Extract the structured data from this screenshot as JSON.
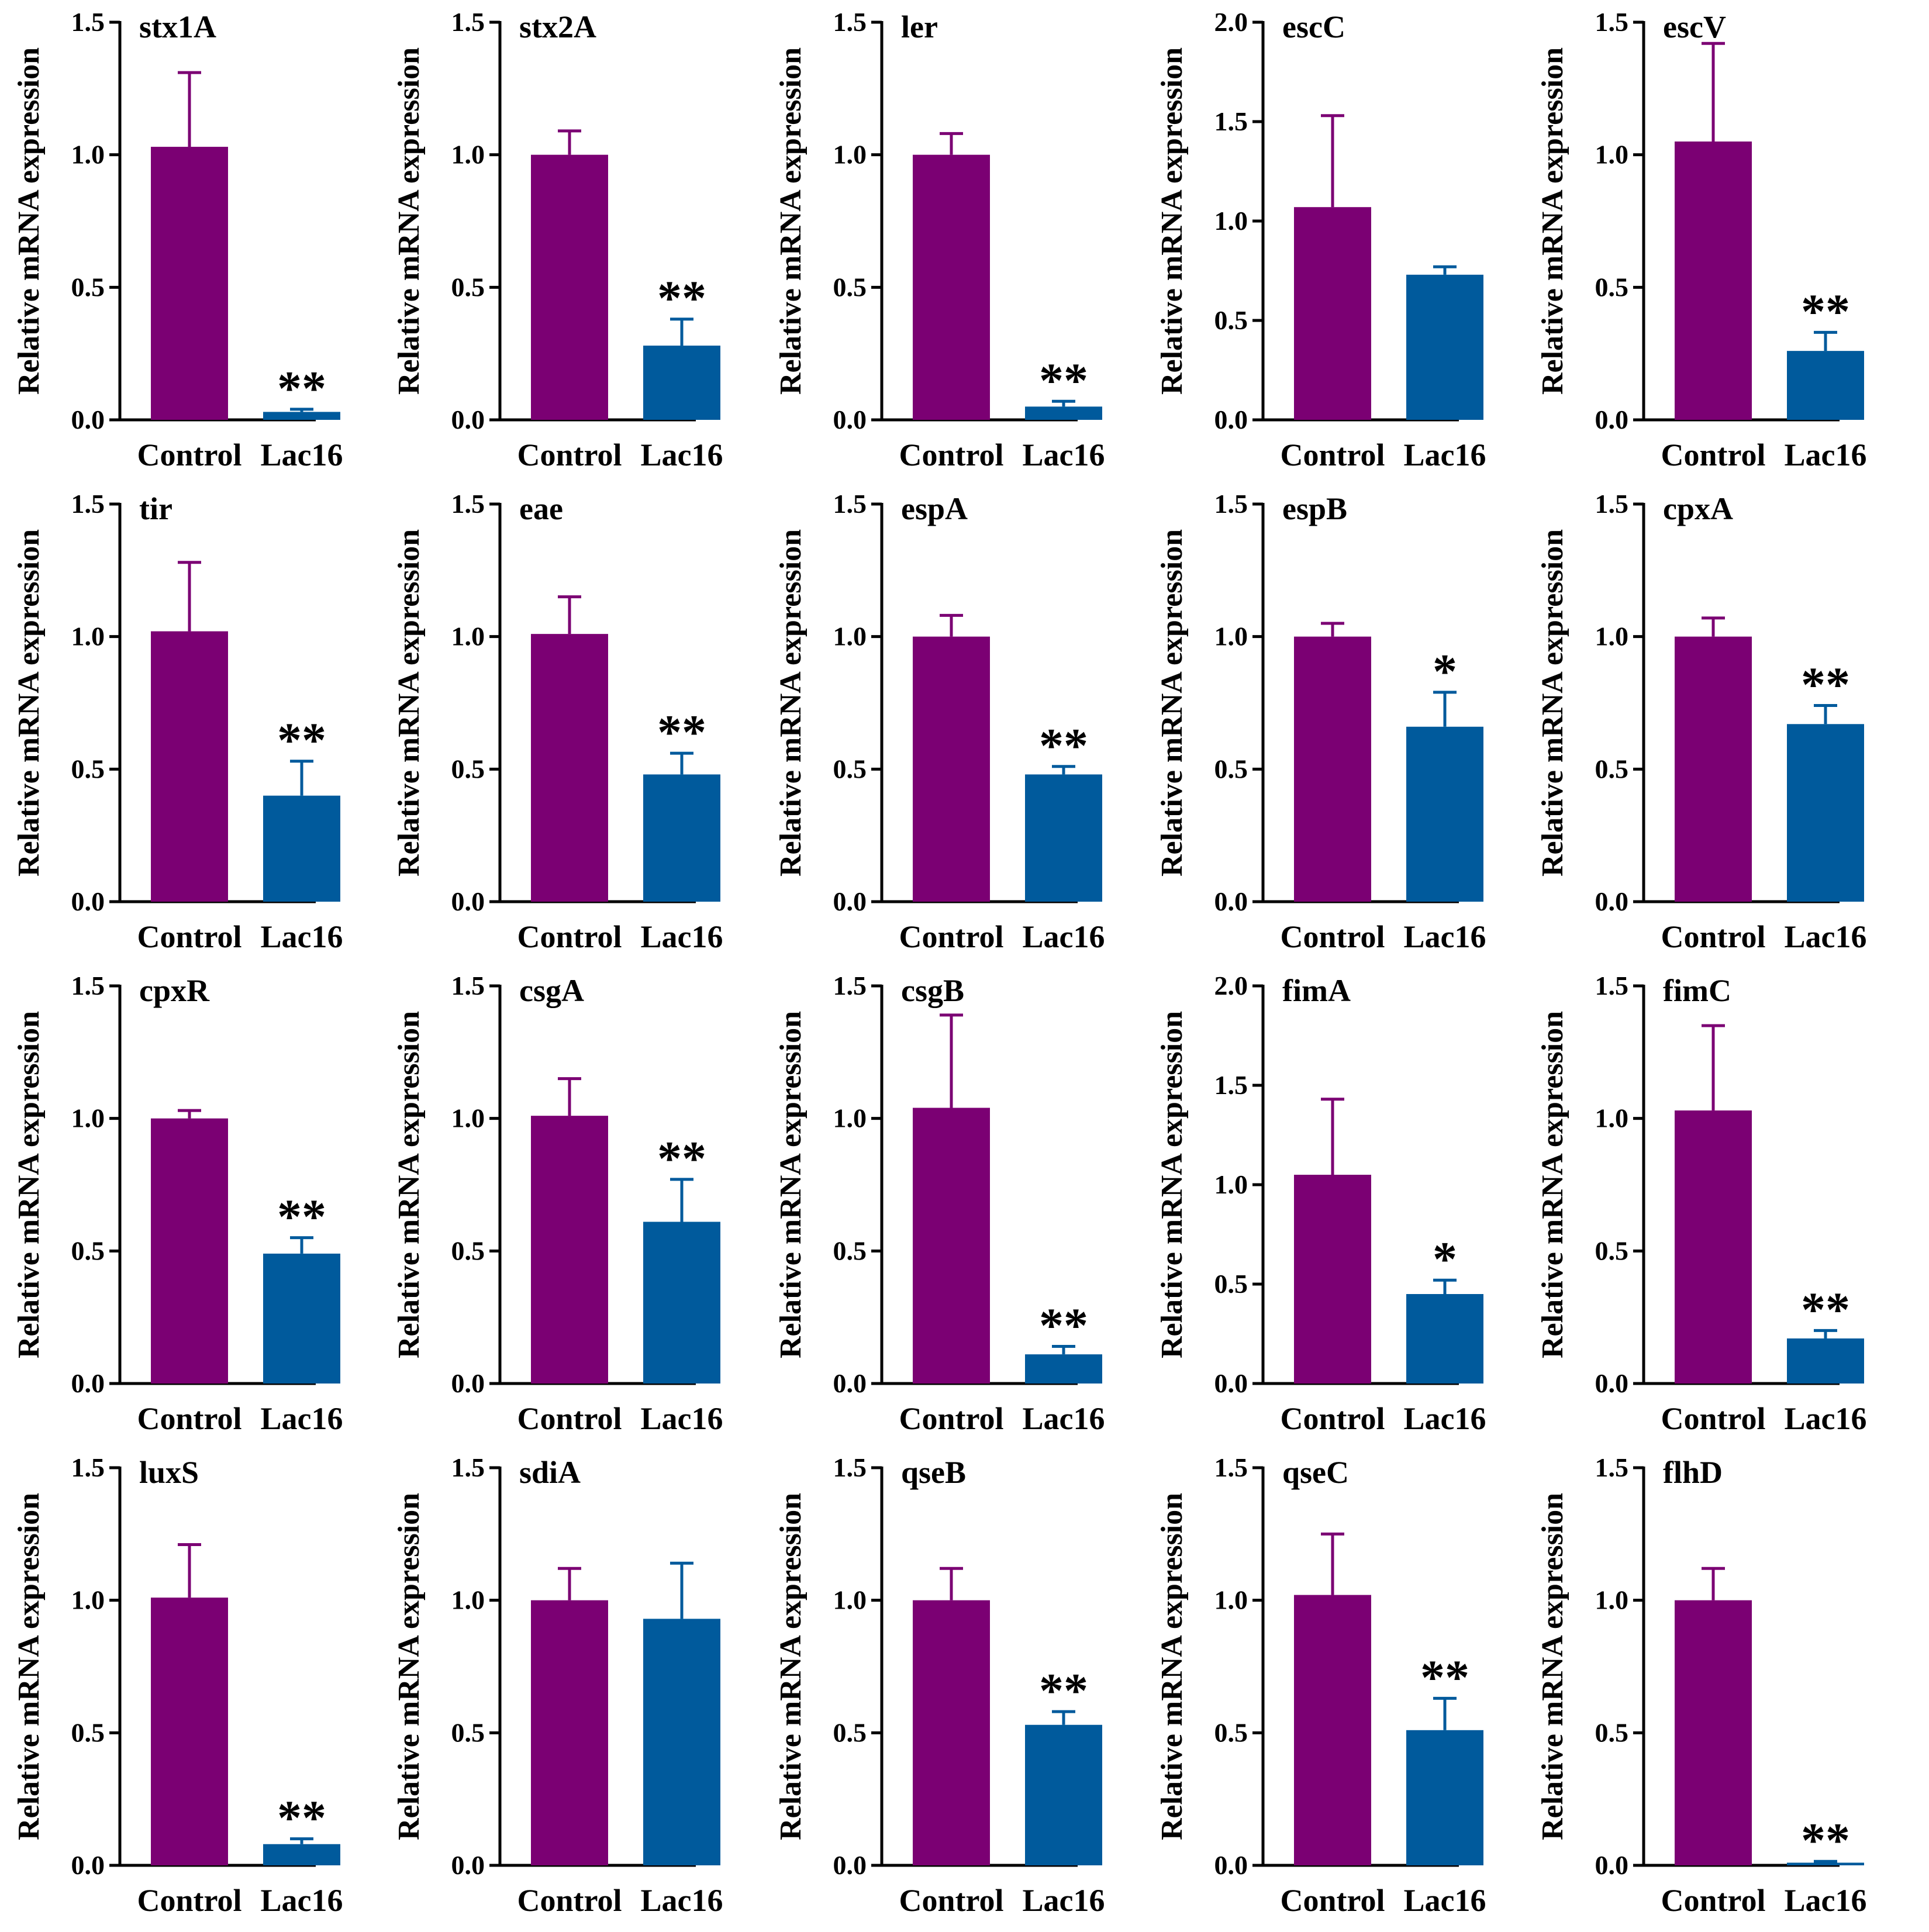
{
  "figure": {
    "colors": {
      "control": "#7b0073",
      "treated": "#005a9c",
      "axis": "#000000"
    }
  },
  "chart_data": [
    {
      "type": "bar",
      "title": "stx1A",
      "categories": [
        "Control",
        "Lac16"
      ],
      "values": [
        1.03,
        0.03
      ],
      "errors": [
        0.28,
        0.01
      ],
      "significance": [
        "",
        "**"
      ],
      "ylabel": "Relative mRNA expression",
      "ylim": [
        0,
        1.5
      ],
      "ticks": [
        "0.0",
        "0.5",
        "1.0",
        "1.5"
      ]
    },
    {
      "type": "bar",
      "title": "stx2A",
      "categories": [
        "Control",
        "Lac16"
      ],
      "values": [
        1.0,
        0.28
      ],
      "errors": [
        0.09,
        0.1
      ],
      "significance": [
        "",
        "**"
      ],
      "ylabel": "Relative mRNA expression",
      "ylim": [
        0,
        1.5
      ],
      "ticks": [
        "0.0",
        "0.5",
        "1.0",
        "1.5"
      ]
    },
    {
      "type": "bar",
      "title": "ler",
      "categories": [
        "Control",
        "Lac16"
      ],
      "values": [
        1.0,
        0.05
      ],
      "errors": [
        0.08,
        0.02
      ],
      "significance": [
        "",
        "**"
      ],
      "ylabel": "Relative mRNA expression",
      "ylim": [
        0,
        1.5
      ],
      "ticks": [
        "0.0",
        "0.5",
        "1.0",
        "1.5"
      ]
    },
    {
      "type": "bar",
      "title": "escC",
      "categories": [
        "Control",
        "Lac16"
      ],
      "values": [
        1.07,
        0.73
      ],
      "errors": [
        0.46,
        0.04
      ],
      "significance": [
        "",
        ""
      ],
      "ylabel": "Relative mRNA expression",
      "ylim": [
        0,
        2.0
      ],
      "ticks": [
        "0.0",
        "0.5",
        "1.0",
        "1.5",
        "2.0"
      ]
    },
    {
      "type": "bar",
      "title": "escV",
      "categories": [
        "Control",
        "Lac16"
      ],
      "values": [
        1.05,
        0.26
      ],
      "errors": [
        0.37,
        0.07
      ],
      "significance": [
        "",
        "**"
      ],
      "ylabel": "Relative mRNA expression",
      "ylim": [
        0,
        1.5
      ],
      "ticks": [
        "0.0",
        "0.5",
        "1.0",
        "1.5"
      ]
    },
    {
      "type": "bar",
      "title": "tir",
      "categories": [
        "Control",
        "Lac16"
      ],
      "values": [
        1.02,
        0.4
      ],
      "errors": [
        0.26,
        0.13
      ],
      "significance": [
        "",
        "**"
      ],
      "ylabel": "Relative mRNA expression",
      "ylim": [
        0,
        1.5
      ],
      "ticks": [
        "0.0",
        "0.5",
        "1.0",
        "1.5"
      ]
    },
    {
      "type": "bar",
      "title": "eae",
      "categories": [
        "Control",
        "Lac16"
      ],
      "values": [
        1.01,
        0.48
      ],
      "errors": [
        0.14,
        0.08
      ],
      "significance": [
        "",
        "**"
      ],
      "ylabel": "Relative mRNA expression",
      "ylim": [
        0,
        1.5
      ],
      "ticks": [
        "0.0",
        "0.5",
        "1.0",
        "1.5"
      ]
    },
    {
      "type": "bar",
      "title": "espA",
      "categories": [
        "Control",
        "Lac16"
      ],
      "values": [
        1.0,
        0.48
      ],
      "errors": [
        0.08,
        0.03
      ],
      "significance": [
        "",
        "**"
      ],
      "ylabel": "Relative mRNA expression",
      "ylim": [
        0,
        1.5
      ],
      "ticks": [
        "0.0",
        "0.5",
        "1.0",
        "1.5"
      ]
    },
    {
      "type": "bar",
      "title": "espB",
      "categories": [
        "Control",
        "Lac16"
      ],
      "values": [
        1.0,
        0.66
      ],
      "errors": [
        0.05,
        0.13
      ],
      "significance": [
        "",
        "*"
      ],
      "ylabel": "Relative mRNA expression",
      "ylim": [
        0,
        1.5
      ],
      "ticks": [
        "0.0",
        "0.5",
        "1.0",
        "1.5"
      ]
    },
    {
      "type": "bar",
      "title": "cpxA",
      "categories": [
        "Control",
        "Lac16"
      ],
      "values": [
        1.0,
        0.67
      ],
      "errors": [
        0.07,
        0.07
      ],
      "significance": [
        "",
        "**"
      ],
      "ylabel": "Relative mRNA expression",
      "ylim": [
        0,
        1.5
      ],
      "ticks": [
        "0.0",
        "0.5",
        "1.0",
        "1.5"
      ]
    },
    {
      "type": "bar",
      "title": "cpxR",
      "categories": [
        "Control",
        "Lac16"
      ],
      "values": [
        1.0,
        0.49
      ],
      "errors": [
        0.03,
        0.06
      ],
      "significance": [
        "",
        "**"
      ],
      "ylabel": "Relative mRNA expression",
      "ylim": [
        0,
        1.5
      ],
      "ticks": [
        "0.0",
        "0.5",
        "1.0",
        "1.5"
      ]
    },
    {
      "type": "bar",
      "title": "csgA",
      "categories": [
        "Control",
        "Lac16"
      ],
      "values": [
        1.01,
        0.61
      ],
      "errors": [
        0.14,
        0.16
      ],
      "significance": [
        "",
        "**"
      ],
      "ylabel": "Relative mRNA expression",
      "ylim": [
        0,
        1.5
      ],
      "ticks": [
        "0.0",
        "0.5",
        "1.0",
        "1.5"
      ]
    },
    {
      "type": "bar",
      "title": "csgB",
      "categories": [
        "Control",
        "Lac16"
      ],
      "values": [
        1.04,
        0.11
      ],
      "errors": [
        0.35,
        0.03
      ],
      "significance": [
        "",
        "**"
      ],
      "ylabel": "Relative mRNA expression",
      "ylim": [
        0,
        1.5
      ],
      "ticks": [
        "0.0",
        "0.5",
        "1.0",
        "1.5"
      ]
    },
    {
      "type": "bar",
      "title": "fimA",
      "categories": [
        "Control",
        "Lac16"
      ],
      "values": [
        1.05,
        0.45
      ],
      "errors": [
        0.38,
        0.07
      ],
      "significance": [
        "",
        "*"
      ],
      "ylabel": "Relative mRNA expression",
      "ylim": [
        0,
        2.0
      ],
      "ticks": [
        "0.0",
        "0.5",
        "1.0",
        "1.5",
        "2.0"
      ]
    },
    {
      "type": "bar",
      "title": "fimC",
      "categories": [
        "Control",
        "Lac16"
      ],
      "values": [
        1.03,
        0.17
      ],
      "errors": [
        0.32,
        0.03
      ],
      "significance": [
        "",
        "**"
      ],
      "ylabel": "Relative mRNA expression",
      "ylim": [
        0,
        1.5
      ],
      "ticks": [
        "0.0",
        "0.5",
        "1.0",
        "1.5"
      ]
    },
    {
      "type": "bar",
      "title": "luxS",
      "categories": [
        "Control",
        "Lac16"
      ],
      "values": [
        1.01,
        0.08
      ],
      "errors": [
        0.2,
        0.02
      ],
      "significance": [
        "",
        "**"
      ],
      "ylabel": "Relative mRNA expression",
      "ylim": [
        0,
        1.5
      ],
      "ticks": [
        "0.0",
        "0.5",
        "1.0",
        "1.5"
      ]
    },
    {
      "type": "bar",
      "title": "sdiA",
      "categories": [
        "Control",
        "Lac16"
      ],
      "values": [
        1.0,
        0.93
      ],
      "errors": [
        0.12,
        0.21
      ],
      "significance": [
        "",
        ""
      ],
      "ylabel": "Relative mRNA expression",
      "ylim": [
        0,
        1.5
      ],
      "ticks": [
        "0.0",
        "0.5",
        "1.0",
        "1.5"
      ]
    },
    {
      "type": "bar",
      "title": "qseB",
      "categories": [
        "Control",
        "Lac16"
      ],
      "values": [
        1.0,
        0.53
      ],
      "errors": [
        0.12,
        0.05
      ],
      "significance": [
        "",
        "**"
      ],
      "ylabel": "Relative mRNA expression",
      "ylim": [
        0,
        1.5
      ],
      "ticks": [
        "0.0",
        "0.5",
        "1.0",
        "1.5"
      ]
    },
    {
      "type": "bar",
      "title": "qseC",
      "categories": [
        "Control",
        "Lac16"
      ],
      "values": [
        1.02,
        0.51
      ],
      "errors": [
        0.23,
        0.12
      ],
      "significance": [
        "",
        "**"
      ],
      "ylabel": "Relative mRNA expression",
      "ylim": [
        0,
        1.5
      ],
      "ticks": [
        "0.0",
        "0.5",
        "1.0",
        "1.5"
      ]
    },
    {
      "type": "bar",
      "title": "flhD",
      "categories": [
        "Control",
        "Lac16"
      ],
      "values": [
        1.0,
        0.01
      ],
      "errors": [
        0.12,
        0.005
      ],
      "significance": [
        "",
        "**"
      ],
      "ylabel": "Relative mRNA expression",
      "ylim": [
        0,
        1.5
      ],
      "ticks": [
        "0.0",
        "0.5",
        "1.0",
        "1.5"
      ]
    }
  ]
}
